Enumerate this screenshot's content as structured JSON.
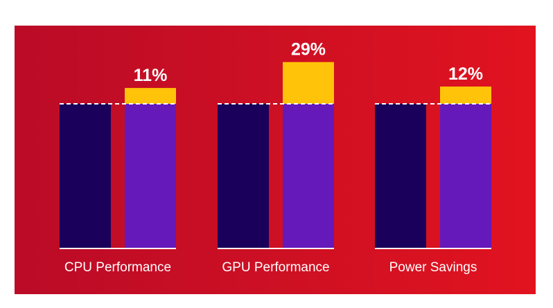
{
  "chart_data": {
    "type": "bar",
    "title": "",
    "xlabel": "",
    "ylabel": "",
    "categories": [
      "CPU Performance",
      "GPU Performance",
      "Power Savings"
    ],
    "baseline": 100,
    "improvement_percent": [
      11,
      29,
      12
    ],
    "improvement_labels": [
      "11%",
      "29%",
      "12%"
    ],
    "grid": false,
    "legend": "none"
  },
  "colors": {
    "background_start": "#bb0b27",
    "background_end": "#e1131f",
    "previous_bar": "#1a005b",
    "new_bar": "#6619ba",
    "gain": "#ffc30a",
    "baseline_line": "#ffffff",
    "text": "#ffffff"
  }
}
